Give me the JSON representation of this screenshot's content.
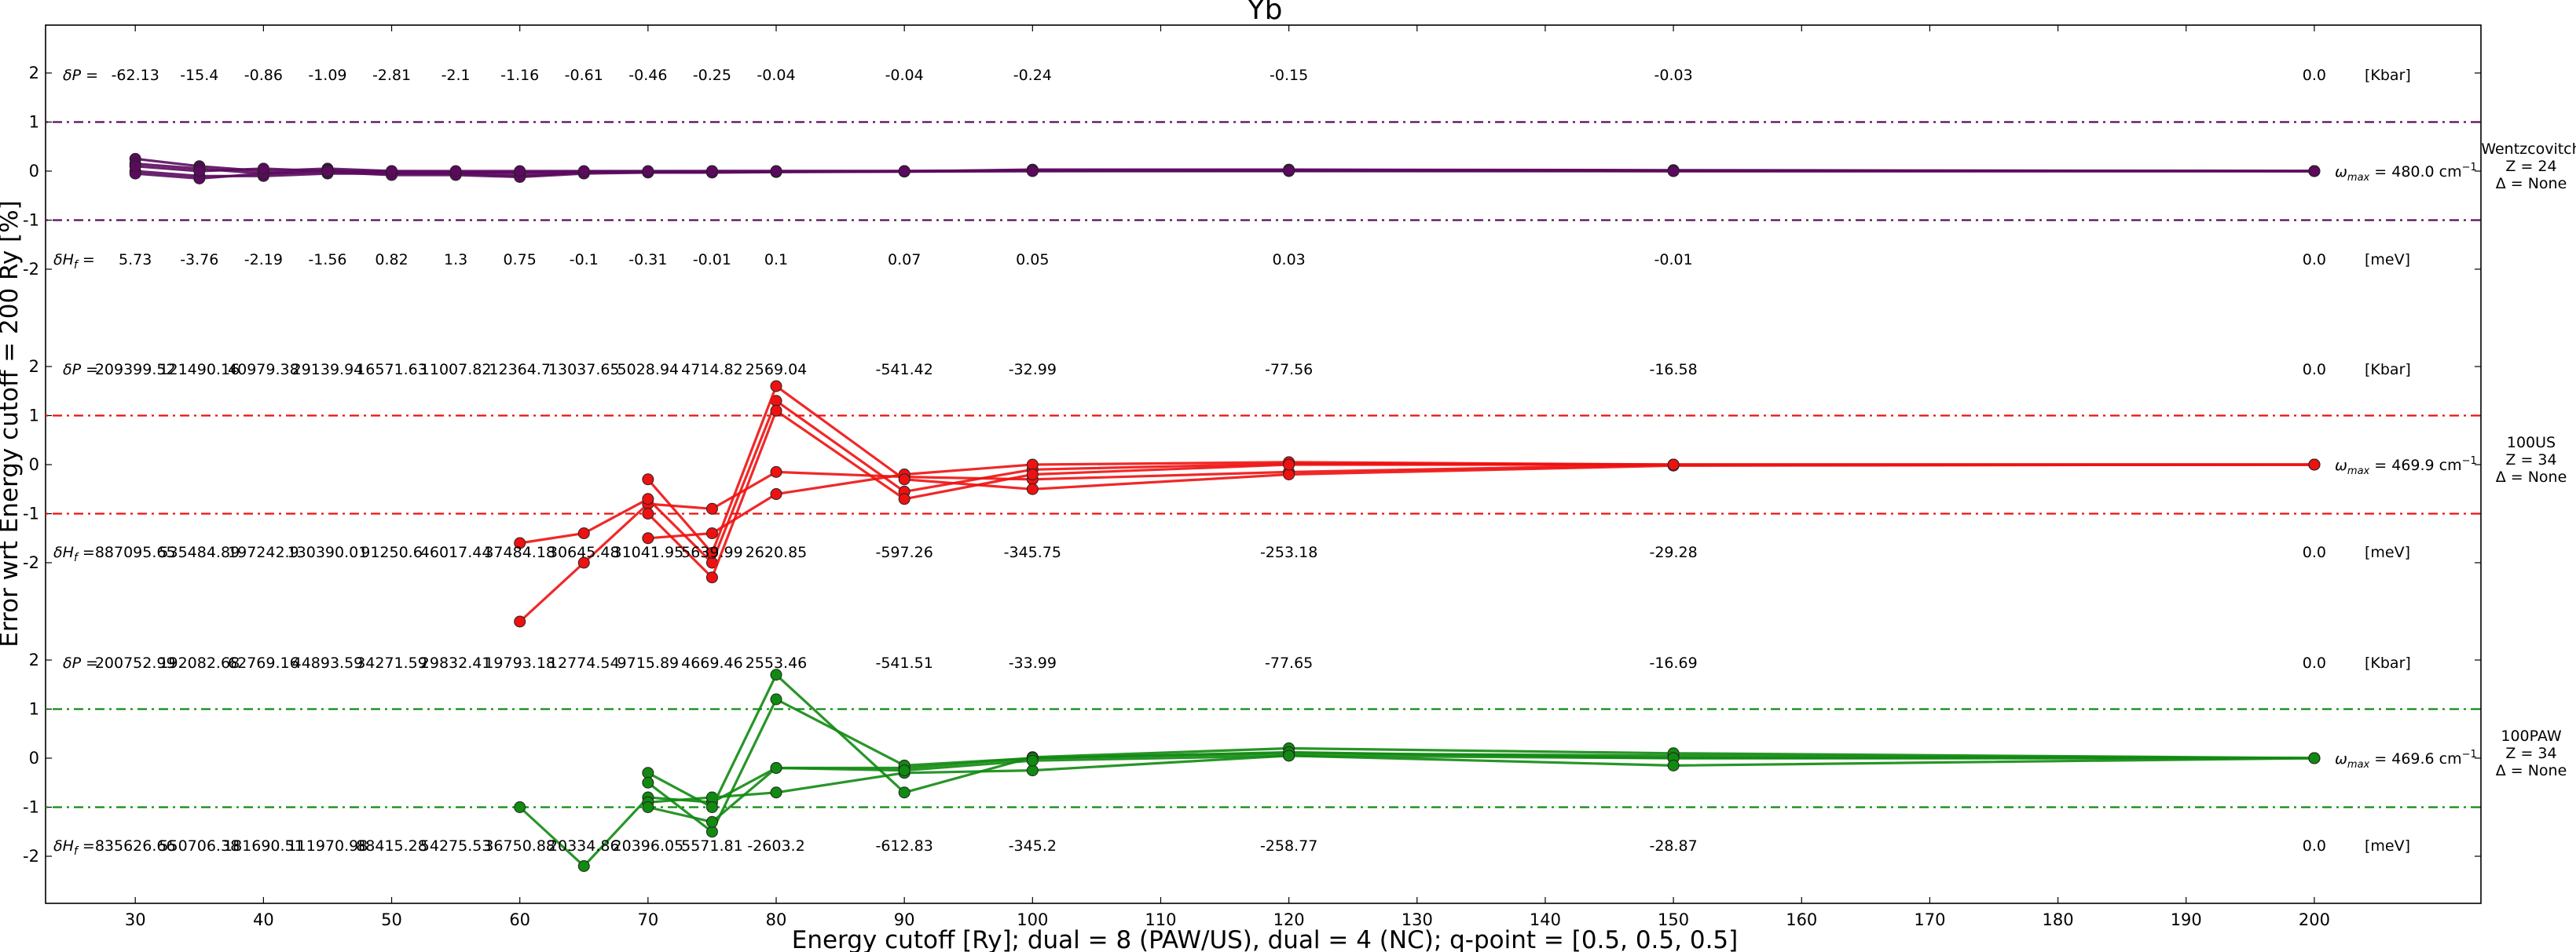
{
  "chart_data": {
    "type": "line",
    "title": "Yb",
    "xlabel": "Energy cutoff [Ry]; dual = 8 (PAW/US), dual = 4 (NC); q-point = [0.5, 0.5, 0.5]",
    "ylabel": "Error wrt Energy cutoff = 200 Ry [%]",
    "xlim": [
      23,
      213
    ],
    "x_ticks": [
      30,
      40,
      50,
      60,
      70,
      80,
      90,
      100,
      110,
      120,
      130,
      140,
      150,
      160,
      170,
      180,
      190,
      200
    ],
    "y_tick_labels": [
      "2",
      "1",
      "0",
      "-1",
      "-2"
    ],
    "panels": [
      {
        "name": "Wentzcovitch",
        "color": "#5b0a5e",
        "band": 1,
        "side_label": [
          "Wentzcovitch",
          "Z = 24",
          "Δ = None"
        ],
        "omega_value": "= 480.0 cm",
        "dP_values": [
          "-62.13",
          "-15.4",
          "-0.86",
          "-1.09",
          "-2.81",
          "-2.1",
          "-1.16",
          "-0.61",
          "-0.46",
          "-0.25",
          "-0.04",
          "-0.04",
          "-0.24",
          "-0.15",
          "-0.03",
          "0.0"
        ],
        "dH_values": [
          "5.73",
          "-3.76",
          "-2.19",
          "-1.56",
          "0.82",
          "1.3",
          "0.75",
          "-0.1",
          "-0.31",
          "-0.01",
          "0.1",
          "0.07",
          "0.05",
          "0.03",
          "-0.01",
          "0.0"
        ]
      },
      {
        "name": "100US",
        "color": "#ee1111",
        "band": 1,
        "side_label": [
          "100US",
          "Z = 34",
          "Δ = None"
        ],
        "omega_value": "= 469.9 cm",
        "dP_values": [
          "209399.52",
          "121490.16",
          "40979.38",
          "29139.94",
          "16571.63",
          "11007.82",
          "12364.7",
          "13037.65",
          "5028.94",
          "4714.82",
          "2569.04",
          "-541.42",
          "-32.99",
          "-77.56",
          "-16.58",
          "0.0"
        ],
        "dH_values": [
          "887095.65",
          "535484.89",
          "197242.9",
          "130390.01",
          "91250.6",
          "46017.44",
          "37484.18",
          "30645.48",
          "31041.95",
          "5639.99",
          "2620.85",
          "-597.26",
          "-345.75",
          "-253.18",
          "-29.28",
          "0.0"
        ]
      },
      {
        "name": "100PAW",
        "color": "#118a11",
        "band": 1,
        "side_label": [
          "100PAW",
          "Z = 34",
          "Δ = None"
        ],
        "omega_value": "= 469.6 cm",
        "dP_values": [
          "200752.99",
          "192082.68",
          "62769.16",
          "44893.59",
          "34271.59",
          "29832.41",
          "19793.18",
          "12774.54",
          "9715.89",
          "4669.46",
          "2553.46",
          "-541.51",
          "-33.99",
          "-77.65",
          "-16.69",
          "0.0"
        ],
        "dH_values": [
          "835626.66",
          "550706.38",
          "181690.51",
          "111970.98",
          "88415.28",
          "54275.53",
          "36750.88",
          "20334.86",
          "20396.05",
          "5571.81",
          "-2603.2",
          "-612.83",
          "-345.2",
          "-258.77",
          "-28.87",
          "0.0"
        ]
      }
    ],
    "annotation_x": [
      30,
      35,
      40,
      45,
      50,
      55,
      60,
      65,
      70,
      75,
      80,
      90,
      100,
      120,
      150,
      200
    ],
    "dP_label": "δP =",
    "dH_label": "δH",
    "dH_sub": "f",
    "dP_unit": "[Kbar]",
    "dH_unit": "[meV]",
    "omega_symbol": "ω",
    "omega_sub": "max",
    "omega_unit_sup": "−1",
    "series_x": [
      30,
      35,
      40,
      45,
      50,
      55,
      60,
      65,
      70,
      75,
      80,
      90,
      100,
      120,
      150,
      200
    ],
    "series": [
      {
        "panel": 0,
        "values": [
          0.25,
          0.1,
          0.0,
          0.05,
          0.0,
          -0.02,
          -0.02,
          -0.01,
          -0.01,
          -0.01,
          -0.01,
          -0.01,
          0.0,
          0.0,
          0.0,
          0.0
        ]
      },
      {
        "panel": 0,
        "values": [
          0.15,
          0.05,
          -0.05,
          0.02,
          -0.05,
          -0.05,
          -0.1,
          -0.03,
          -0.02,
          -0.02,
          -0.01,
          0.0,
          0.02,
          0.01,
          0.0,
          0.0
        ]
      },
      {
        "panel": 0,
        "values": [
          0.0,
          -0.1,
          -0.1,
          -0.05,
          -0.05,
          -0.03,
          -0.05,
          -0.02,
          -0.01,
          0.0,
          0.0,
          0.0,
          0.01,
          0.02,
          0.01,
          0.0
        ]
      },
      {
        "panel": 0,
        "values": [
          -0.05,
          -0.15,
          -0.05,
          -0.02,
          -0.08,
          -0.08,
          -0.12,
          -0.05,
          -0.03,
          -0.03,
          -0.02,
          -0.01,
          0.03,
          0.03,
          0.02,
          0.0
        ]
      },
      {
        "panel": 0,
        "values": [
          0.1,
          0.0,
          0.05,
          0.0,
          0.0,
          0.0,
          0.0,
          0.0,
          0.0,
          0.0,
          0.0,
          0.0,
          0.0,
          0.01,
          0.0,
          0.0
        ]
      },
      {
        "panel": 1,
        "values": [
          null,
          null,
          null,
          null,
          null,
          null,
          -3.2,
          -2.0,
          -0.8,
          -0.9,
          -0.15,
          -0.25,
          -0.3,
          -0.15,
          0.0,
          0.0
        ]
      },
      {
        "panel": 1,
        "values": [
          null,
          null,
          null,
          null,
          null,
          null,
          -1.6,
          -1.4,
          -0.7,
          -2.0,
          1.3,
          -0.55,
          -0.1,
          0.02,
          0.0,
          0.0
        ]
      },
      {
        "panel": 1,
        "values": [
          null,
          null,
          null,
          null,
          null,
          null,
          null,
          null,
          -1.5,
          -1.4,
          -0.6,
          -0.2,
          0.0,
          0.05,
          0.0,
          0.0
        ]
      },
      {
        "panel": 1,
        "values": [
          null,
          null,
          null,
          null,
          null,
          null,
          null,
          null,
          -0.3,
          -1.8,
          1.6,
          -0.3,
          -0.5,
          -0.2,
          -0.02,
          0.0
        ]
      },
      {
        "panel": 1,
        "values": [
          null,
          null,
          null,
          null,
          null,
          null,
          null,
          null,
          -1.0,
          -2.3,
          1.1,
          -0.7,
          -0.2,
          0.0,
          0.0,
          0.0
        ]
      },
      {
        "panel": 2,
        "values": [
          null,
          null,
          null,
          null,
          null,
          null,
          -1.0,
          -2.2,
          -0.8,
          -0.9,
          -0.2,
          -0.2,
          0.0,
          0.1,
          0.05,
          0.0
        ]
      },
      {
        "panel": 2,
        "values": [
          null,
          null,
          null,
          null,
          null,
          null,
          null,
          null,
          -0.9,
          -0.8,
          -0.7,
          -0.3,
          -0.25,
          0.05,
          0.0,
          0.0
        ]
      },
      {
        "panel": 2,
        "values": [
          null,
          null,
          null,
          null,
          null,
          null,
          null,
          null,
          -0.3,
          -1.0,
          1.7,
          -0.7,
          0.02,
          0.2,
          0.1,
          0.0
        ]
      },
      {
        "panel": 2,
        "values": [
          null,
          null,
          null,
          null,
          null,
          null,
          null,
          null,
          -0.5,
          -1.5,
          1.2,
          -0.15,
          0.0,
          0.12,
          0.0,
          0.0
        ]
      },
      {
        "panel": 2,
        "values": [
          null,
          null,
          null,
          null,
          null,
          null,
          null,
          null,
          -1.0,
          -1.3,
          -0.2,
          -0.25,
          -0.05,
          0.05,
          -0.15,
          0.0
        ]
      }
    ]
  }
}
